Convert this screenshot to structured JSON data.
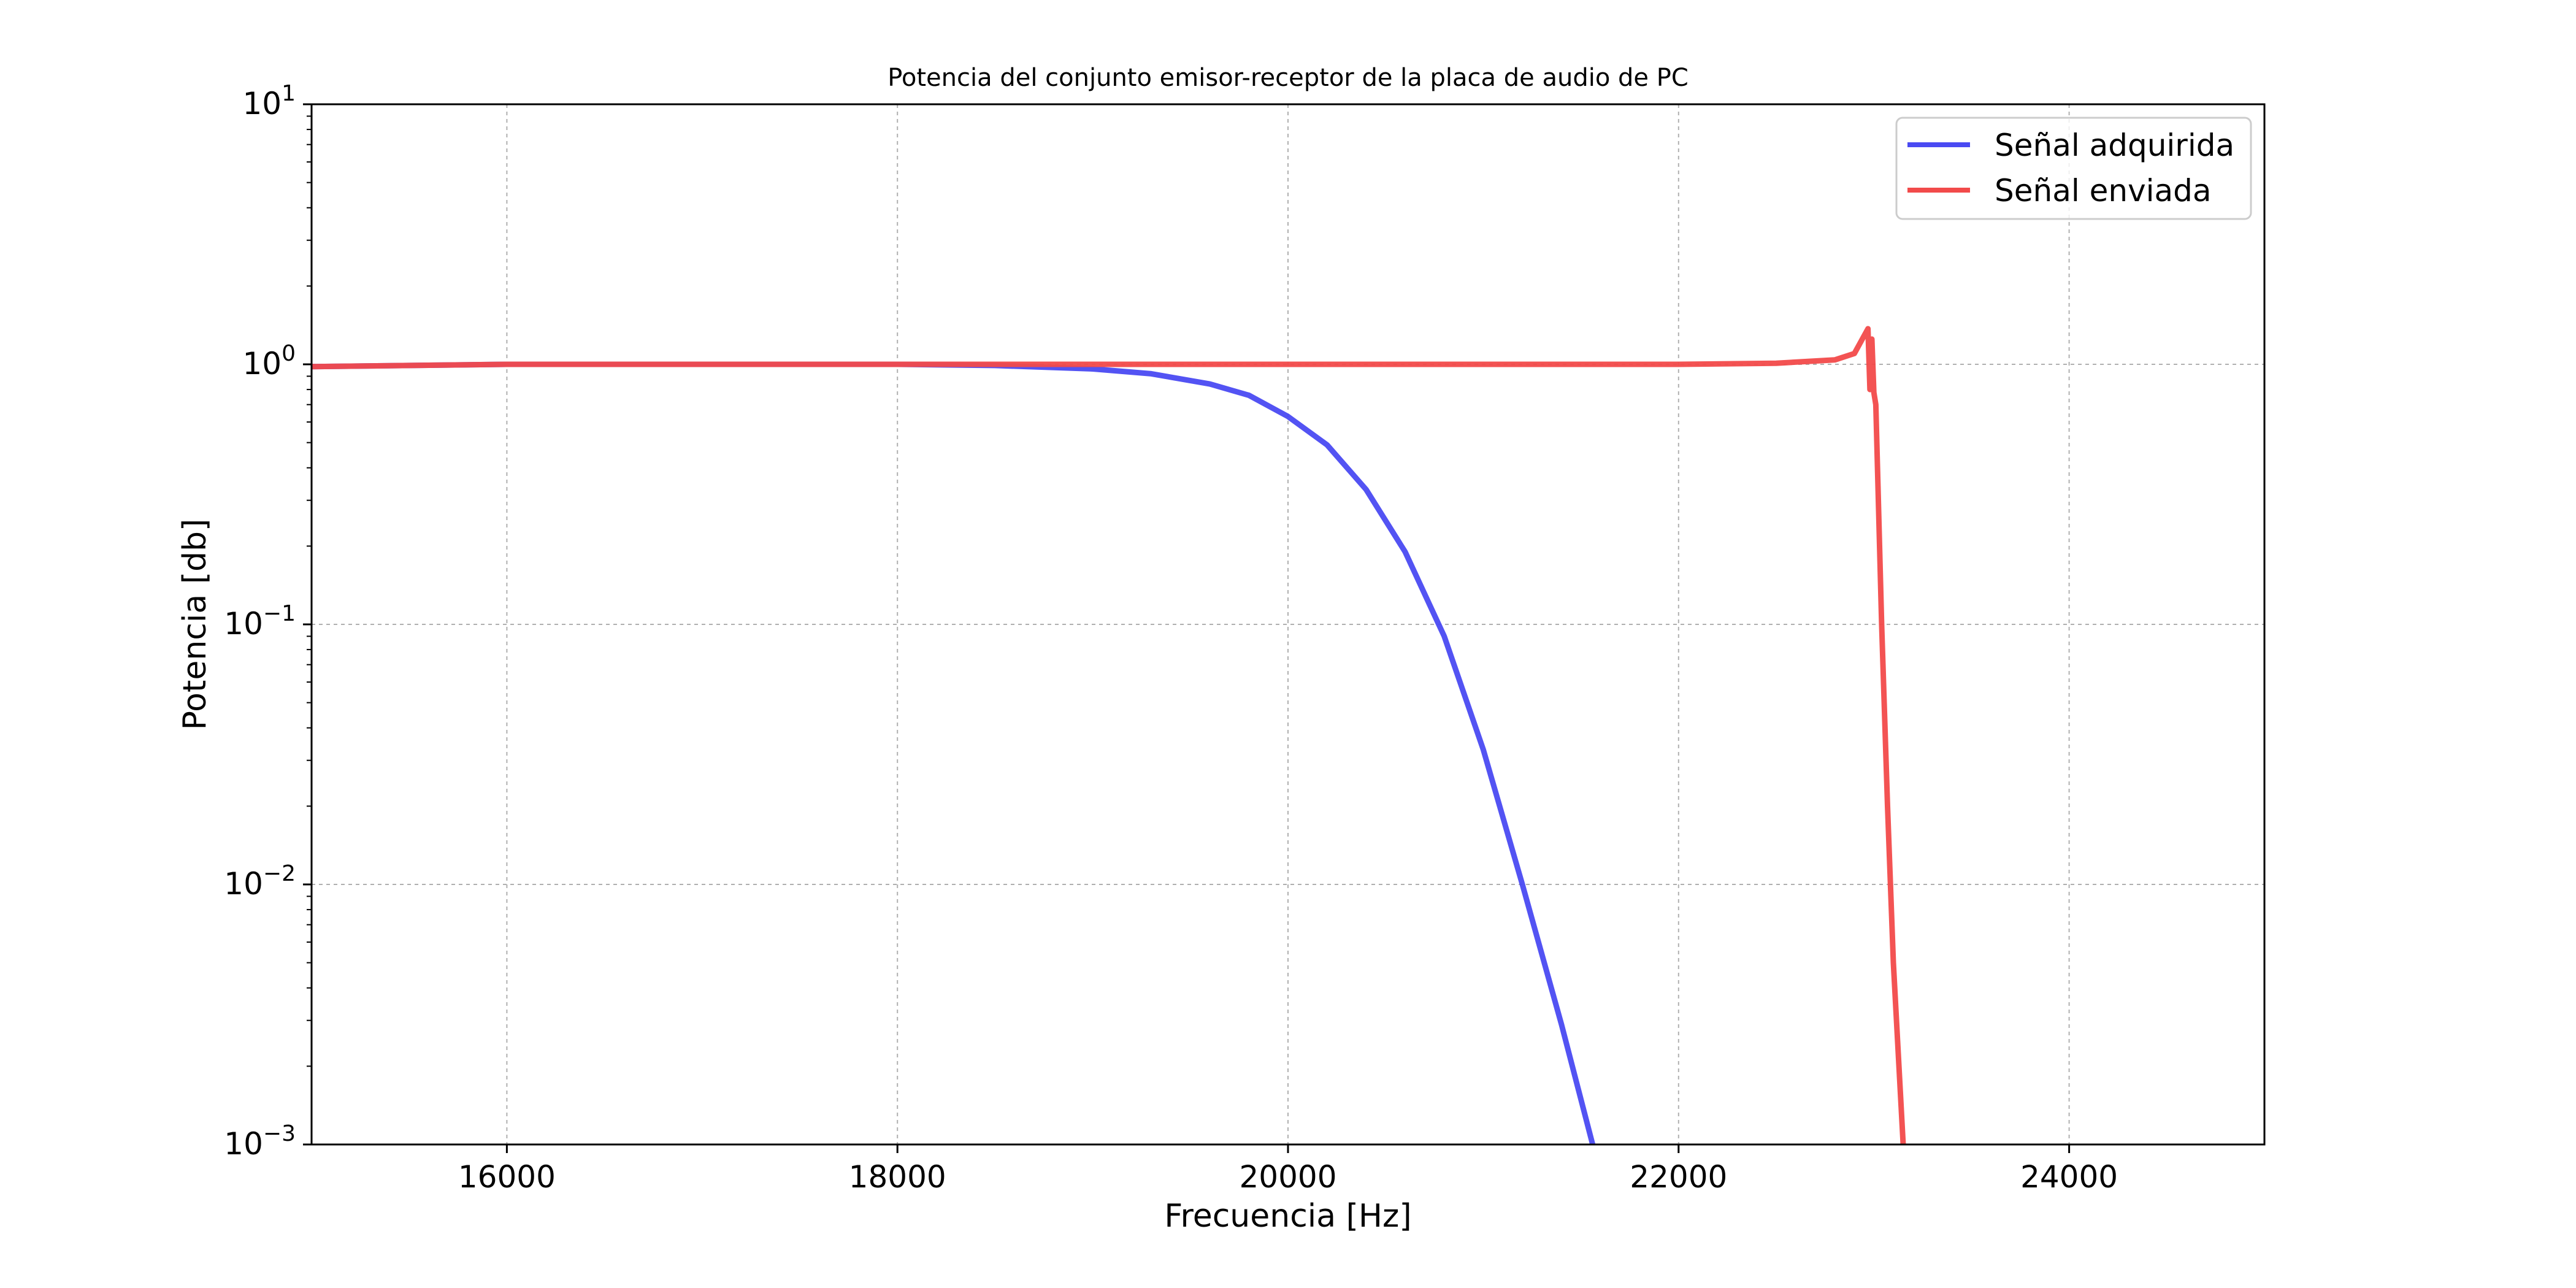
{
  "chart_data": {
    "type": "line",
    "title": "Potencia del conjunto emisor-receptor de la placa de audio de PC",
    "xlabel": "Frecuencia [Hz]",
    "ylabel": "Potencia [db]",
    "xlim": [
      15000,
      25000
    ],
    "ylim": [
      0.001,
      10
    ],
    "yscale": "log",
    "grid": true,
    "legend_position": "top-right",
    "x_ticks": [
      16000,
      18000,
      20000,
      22000,
      24000
    ],
    "x_tick_labels": [
      "16000",
      "18000",
      "20000",
      "22000",
      "24000"
    ],
    "y_ticks": [
      {
        "value": 10,
        "base": "10",
        "exp": "1"
      },
      {
        "value": 1,
        "base": "10",
        "exp": "0"
      },
      {
        "value": 0.1,
        "base": "10",
        "exp": "−1"
      },
      {
        "value": 0.01,
        "base": "10",
        "exp": "−2"
      },
      {
        "value": 0.001,
        "base": "10",
        "exp": "−3"
      }
    ],
    "series": [
      {
        "name": "Señal adquirida",
        "color": "#4a4af2",
        "points": [
          [
            15000,
            0.98
          ],
          [
            16000,
            1.0
          ],
          [
            17000,
            1.0
          ],
          [
            18000,
            1.0
          ],
          [
            18500,
            0.99
          ],
          [
            19000,
            0.96
          ],
          [
            19300,
            0.92
          ],
          [
            19600,
            0.84
          ],
          [
            19800,
            0.76
          ],
          [
            20000,
            0.63
          ],
          [
            20200,
            0.49
          ],
          [
            20400,
            0.33
          ],
          [
            20600,
            0.19
          ],
          [
            20800,
            0.09
          ],
          [
            21000,
            0.033
          ],
          [
            21200,
            0.01
          ],
          [
            21400,
            0.0029
          ],
          [
            21560,
            0.001
          ]
        ]
      },
      {
        "name": "Señal enviada",
        "color": "#f24a4a",
        "points": [
          [
            15000,
            0.98
          ],
          [
            16000,
            1.0
          ],
          [
            17000,
            1.0
          ],
          [
            18000,
            1.0
          ],
          [
            19000,
            1.0
          ],
          [
            20000,
            1.0
          ],
          [
            21000,
            1.0
          ],
          [
            22000,
            1.0
          ],
          [
            22500,
            1.01
          ],
          [
            22800,
            1.04
          ],
          [
            22900,
            1.1
          ],
          [
            22970,
            1.37
          ],
          [
            22980,
            0.8
          ],
          [
            22990,
            1.25
          ],
          [
            23000,
            0.78
          ],
          [
            23010,
            0.7
          ],
          [
            23040,
            0.1
          ],
          [
            23070,
            0.02
          ],
          [
            23100,
            0.005
          ],
          [
            23150,
            0.001
          ]
        ]
      }
    ]
  }
}
